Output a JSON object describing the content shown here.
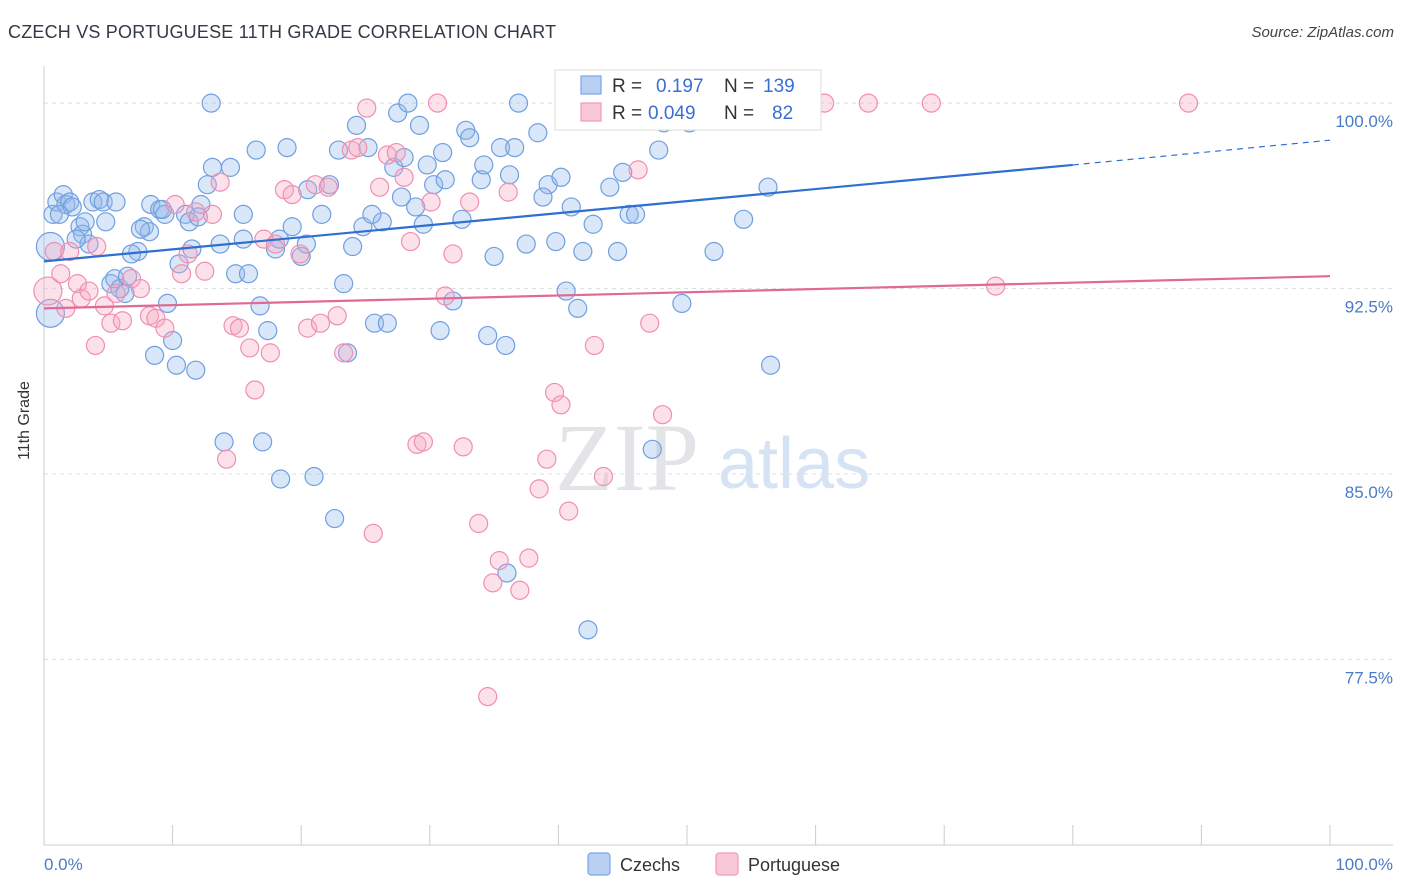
{
  "header": {
    "title": "CZECH VS PORTUGUESE 11TH GRADE CORRELATION CHART",
    "source": "Source: ZipAtlas.com"
  },
  "watermark": {
    "zip": "ZIP",
    "atlas": "atlas"
  },
  "chart_data": {
    "type": "scatter",
    "ylabel": "11th Grade",
    "x_range": [
      0,
      100
    ],
    "y_range": [
      70,
      101.5
    ],
    "x_ticks": [
      "0.0%",
      "100.0%"
    ],
    "y_ticks": [
      {
        "value": 100.0,
        "label": "100.0%"
      },
      {
        "value": 92.5,
        "label": "92.5%"
      },
      {
        "value": 85.0,
        "label": "85.0%"
      },
      {
        "value": 77.5,
        "label": "77.5%"
      }
    ],
    "grid": true,
    "legend_top": {
      "rows": [
        {
          "r_label": "R =",
          "r_value": "0.197",
          "n_label": "N =",
          "n_value": "139",
          "color": "#7aa7e8",
          "fill": "#b9d0f2"
        },
        {
          "r_label": "R =",
          "r_value": "0.049",
          "n_label": "N =",
          "n_value": "82",
          "color": "#f09ab8",
          "fill": "#f9c8d8"
        }
      ]
    },
    "legend_bottom": [
      {
        "name": "Czechs",
        "color": "#7aa7e8",
        "fill": "#b9d0f2"
      },
      {
        "name": "Portuguese",
        "color": "#f09ab8",
        "fill": "#f9c8d8"
      }
    ],
    "series": [
      {
        "name": "Czechs",
        "color": "#6f9fe0",
        "fill": "rgba(150,185,235,0.35)",
        "trend": {
          "x0": 0,
          "y0": 93.6,
          "x1": 80,
          "y1": 97.5,
          "dash_to_x": 100,
          "dash_to_y": 98.5,
          "color": "#2e6fd0"
        },
        "points": [
          [
            0.5,
            94.2
          ],
          [
            0.5,
            91.5
          ],
          [
            0.7,
            95.5
          ],
          [
            1,
            96
          ],
          [
            1.5,
            96.3
          ],
          [
            1.7,
            95.9
          ],
          [
            2,
            96
          ],
          [
            2.2,
            95.8
          ],
          [
            2.8,
            95
          ],
          [
            3,
            94.7
          ],
          [
            3.5,
            94.3
          ],
          [
            3.8,
            96
          ],
          [
            4.3,
            96.1
          ],
          [
            4.6,
            96
          ],
          [
            4.8,
            95.2
          ],
          [
            5.2,
            92.7
          ],
          [
            5.5,
            92.9
          ],
          [
            5.9,
            92.5
          ],
          [
            6.3,
            92.3
          ],
          [
            6.5,
            93
          ],
          [
            7.3,
            94
          ],
          [
            7.8,
            95
          ],
          [
            8.3,
            95.9
          ],
          [
            8.6,
            89.8
          ],
          [
            9,
            95.7
          ],
          [
            9.4,
            95.5
          ],
          [
            9.6,
            91.9
          ],
          [
            10,
            90.4
          ],
          [
            10.3,
            89.4
          ],
          [
            11,
            95.5
          ],
          [
            11.3,
            95.2
          ],
          [
            11.5,
            94.1
          ],
          [
            11.8,
            89.2
          ],
          [
            12.2,
            95.9
          ],
          [
            12.7,
            96.7
          ],
          [
            13.1,
            97.4
          ],
          [
            13.7,
            94.3
          ],
          [
            14,
            86.3
          ],
          [
            14.5,
            97.4
          ],
          [
            14.9,
            93.1
          ],
          [
            15.5,
            95.5
          ],
          [
            15.9,
            93.1
          ],
          [
            16.5,
            98.1
          ],
          [
            16.8,
            91.8
          ],
          [
            17,
            86.3
          ],
          [
            17.4,
            90.8
          ],
          [
            18,
            94.1
          ],
          [
            18.4,
            84.8
          ],
          [
            18.9,
            98.2
          ],
          [
            19.3,
            95
          ],
          [
            20,
            93.8
          ],
          [
            20.5,
            96.5
          ],
          [
            21,
            84.9
          ],
          [
            21.6,
            95.5
          ],
          [
            22.2,
            96.7
          ],
          [
            22.6,
            83.2
          ],
          [
            22.9,
            98.1
          ],
          [
            23.3,
            92.7
          ],
          [
            23.6,
            89.9
          ],
          [
            24.3,
            99.1
          ],
          [
            24.8,
            95
          ],
          [
            25.2,
            98.2
          ],
          [
            25.7,
            91.1
          ],
          [
            26.3,
            95.2
          ],
          [
            26.7,
            91.1
          ],
          [
            27.2,
            97.4
          ],
          [
            27.5,
            99.6
          ],
          [
            28,
            97.8
          ],
          [
            28.3,
            100
          ],
          [
            28.9,
            95.8
          ],
          [
            29.2,
            99.1
          ],
          [
            29.8,
            97.5
          ],
          [
            30.3,
            96.7
          ],
          [
            30.8,
            90.8
          ],
          [
            31.2,
            96.9
          ],
          [
            31.8,
            92
          ],
          [
            32.5,
            95.3
          ],
          [
            32.8,
            98.9
          ],
          [
            33.1,
            98.6
          ],
          [
            34,
            96.9
          ],
          [
            34.5,
            90.6
          ],
          [
            35,
            93.8
          ],
          [
            35.5,
            98.2
          ],
          [
            35.9,
            90.2
          ],
          [
            36,
            81
          ],
          [
            36.6,
            98.2
          ],
          [
            36.9,
            100
          ],
          [
            37.5,
            94.3
          ],
          [
            38.4,
            98.8
          ],
          [
            39.2,
            96.7
          ],
          [
            39.8,
            94.4
          ],
          [
            40.2,
            97
          ],
          [
            40.6,
            92.4
          ],
          [
            41,
            95.8
          ],
          [
            41.5,
            91.7
          ],
          [
            41.9,
            94
          ],
          [
            42.3,
            78.7
          ],
          [
            43.1,
            100
          ],
          [
            44,
            96.6
          ],
          [
            44.6,
            94
          ],
          [
            45,
            97.2
          ],
          [
            45.5,
            95.5
          ],
          [
            46,
            95.5
          ],
          [
            47.3,
            86
          ],
          [
            47.8,
            98.1
          ],
          [
            48.2,
            99.2
          ],
          [
            49.6,
            91.9
          ],
          [
            50.2,
            99.2
          ],
          [
            52.1,
            94
          ],
          [
            54.4,
            95.3
          ],
          [
            56.5,
            89.4
          ],
          [
            56.8,
            100
          ],
          [
            57,
            100
          ],
          [
            56.3,
            96.6
          ],
          [
            44.8,
            100
          ],
          [
            13,
            100
          ],
          [
            10.5,
            93.5
          ],
          [
            8.2,
            94.8
          ],
          [
            6.8,
            93.9
          ],
          [
            20.4,
            94.3
          ],
          [
            18.3,
            94.5
          ],
          [
            15.5,
            94.5
          ],
          [
            12,
            95.4
          ],
          [
            9.2,
            95.7
          ],
          [
            7.5,
            94.9
          ],
          [
            5.6,
            96
          ],
          [
            3.2,
            95.2
          ],
          [
            1.2,
            95.5
          ],
          [
            2.5,
            94.5
          ],
          [
            25.5,
            95.5
          ],
          [
            27.8,
            96.2
          ],
          [
            31,
            98
          ],
          [
            34.2,
            97.5
          ],
          [
            36.2,
            97.1
          ],
          [
            38.8,
            96.2
          ],
          [
            42.7,
            95.1
          ],
          [
            47.5,
            100
          ],
          [
            24,
            94.2
          ],
          [
            29.5,
            95.1
          ]
        ]
      },
      {
        "name": "Portuguese",
        "color": "#f08fb0",
        "fill": "rgba(245,170,195,0.35)",
        "trend": {
          "x0": 0,
          "y0": 91.7,
          "x1": 100,
          "y1": 93.0,
          "color": "#e06a95"
        },
        "points": [
          [
            0.3,
            92.4
          ],
          [
            0.8,
            94
          ],
          [
            1.3,
            93.1
          ],
          [
            2,
            94
          ],
          [
            2.6,
            92.7
          ],
          [
            2.9,
            92.1
          ],
          [
            3.5,
            92.4
          ],
          [
            4.1,
            94.2
          ],
          [
            4.7,
            91.8
          ],
          [
            5.2,
            91.1
          ],
          [
            5.6,
            92.3
          ],
          [
            6.1,
            91.2
          ],
          [
            6.8,
            92.9
          ],
          [
            7.5,
            92.5
          ],
          [
            8.2,
            91.4
          ],
          [
            8.7,
            91.3
          ],
          [
            9.4,
            90.9
          ],
          [
            10.2,
            95.9
          ],
          [
            10.7,
            93.1
          ],
          [
            11.2,
            93.9
          ],
          [
            11.8,
            95.6
          ],
          [
            12.5,
            93.2
          ],
          [
            13.1,
            95.5
          ],
          [
            13.7,
            96.8
          ],
          [
            14.2,
            85.6
          ],
          [
            14.7,
            91
          ],
          [
            15.2,
            90.9
          ],
          [
            16,
            90.1
          ],
          [
            16.4,
            88.4
          ],
          [
            17.1,
            94.5
          ],
          [
            17.6,
            89.9
          ],
          [
            18,
            94.3
          ],
          [
            18.7,
            96.5
          ],
          [
            19.3,
            96.3
          ],
          [
            19.9,
            93.9
          ],
          [
            20.5,
            90.9
          ],
          [
            21.1,
            96.7
          ],
          [
            21.5,
            91.1
          ],
          [
            22.1,
            96.6
          ],
          [
            22.8,
            91.4
          ],
          [
            23.3,
            89.9
          ],
          [
            23.9,
            98.1
          ],
          [
            24.4,
            98.2
          ],
          [
            25.1,
            99.8
          ],
          [
            25.6,
            82.6
          ],
          [
            26.1,
            96.6
          ],
          [
            26.7,
            97.9
          ],
          [
            27.4,
            98
          ],
          [
            28,
            97
          ],
          [
            28.5,
            94.4
          ],
          [
            29,
            86.2
          ],
          [
            29.5,
            86.3
          ],
          [
            30.1,
            96
          ],
          [
            30.6,
            100
          ],
          [
            31.2,
            92.2
          ],
          [
            31.8,
            93.9
          ],
          [
            32.6,
            86.1
          ],
          [
            33.1,
            96
          ],
          [
            33.8,
            83
          ],
          [
            34.5,
            76
          ],
          [
            34.9,
            80.6
          ],
          [
            35.4,
            81.5
          ],
          [
            36.1,
            96.4
          ],
          [
            37,
            80.3
          ],
          [
            37.7,
            81.6
          ],
          [
            38.5,
            84.4
          ],
          [
            39.1,
            85.6
          ],
          [
            39.7,
            88.3
          ],
          [
            40.2,
            87.8
          ],
          [
            40.8,
            83.5
          ],
          [
            42.8,
            90.2
          ],
          [
            43.5,
            84.9
          ],
          [
            46.2,
            97.3
          ],
          [
            47.1,
            91.1
          ],
          [
            48.1,
            87.4
          ],
          [
            60.7,
            100
          ],
          [
            64.1,
            100
          ],
          [
            69,
            100
          ],
          [
            74,
            92.6
          ],
          [
            89,
            100
          ],
          [
            1.7,
            91.7
          ],
          [
            4,
            90.2
          ]
        ]
      }
    ]
  }
}
